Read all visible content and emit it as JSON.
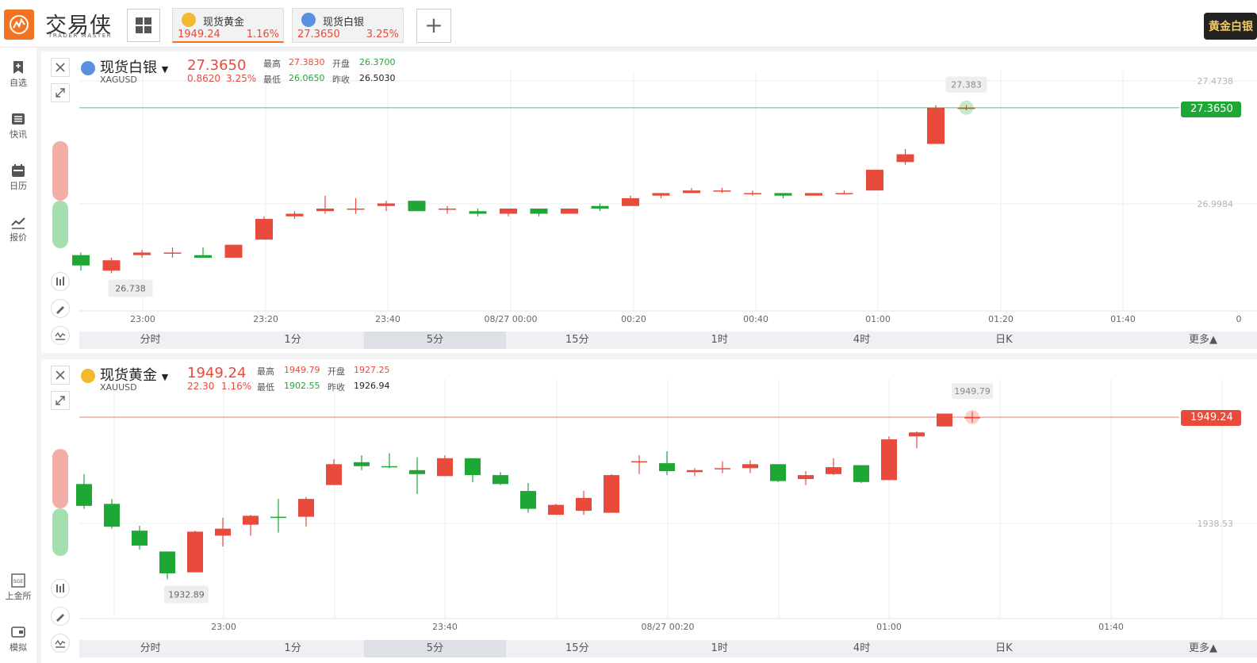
{
  "app": {
    "title": "交易侠",
    "subtitle": "TRADER MASTER",
    "promo": "黄金白银"
  },
  "tabs": [
    {
      "name": "现货黄金",
      "price": "1949.24",
      "change": "1.16%",
      "active": true
    },
    {
      "name": "现货白银",
      "price": "27.3650",
      "change": "3.25%",
      "active": false
    }
  ],
  "sidebar": {
    "top": [
      {
        "label": "自选",
        "icon": "bookmark-icon"
      },
      {
        "label": "快讯",
        "icon": "news-list-icon"
      },
      {
        "label": "日历",
        "icon": "calendar-icon"
      },
      {
        "label": "报价",
        "icon": "quote-trend-icon"
      }
    ],
    "bottom": [
      {
        "label": "上金所",
        "icon": "sge-icon"
      },
      {
        "label": "模拟",
        "icon": "wallet-icon"
      }
    ]
  },
  "colors": {
    "up": "#e84b3c",
    "down": "#1ea735",
    "accent": "#f47321"
  },
  "timeframes": [
    "分时",
    "1分",
    "5分",
    "15分",
    "1时",
    "4时",
    "日K",
    "更多▲"
  ],
  "selected_timeframe": "5分",
  "panels": [
    {
      "name": "现货白银",
      "code": "XAGUSD",
      "price": "27.3650",
      "change": "0.8620",
      "change_pct": "3.25%",
      "high_label": "最高",
      "high": "27.3830",
      "open_label": "开盘",
      "open": "26.3700",
      "low_label": "最低",
      "low": "26.0650",
      "prev_label": "昨收",
      "prev": "26.5030",
      "current_tag": "27.3650",
      "max_marker": "27.383",
      "min_marker": "26.738",
      "y_labels": [
        "27.4738",
        "26.9984"
      ],
      "x_labels": [
        "23:00",
        "23:20",
        "23:40",
        "08/27 00:00",
        "00:20",
        "00:40",
        "01:00",
        "01:20",
        "01:40",
        "0"
      ]
    },
    {
      "name": "现货黄金",
      "code": "XAUUSD",
      "price": "1949.24",
      "change": "22.30",
      "change_pct": "1.16%",
      "high_label": "最高",
      "high": "1949.79",
      "open_label": "开盘",
      "open": "1927.25",
      "low_label": "最低",
      "low": "1902.55",
      "prev_label": "昨收",
      "prev": "1926.94",
      "current_tag": "1949.24",
      "max_marker": "1949.79",
      "min_marker": "1932.89",
      "y_labels": [
        "1938.53"
      ],
      "x_labels": [
        "23:00",
        "23:40",
        "08/27 00:20",
        "01:00",
        "01:40"
      ]
    }
  ],
  "chart_data": [
    {
      "type": "candlestick",
      "title": "现货白银 XAGUSD 5分",
      "x_ticks": [
        "23:00",
        "23:20",
        "23:40",
        "08/27 00:00",
        "00:20",
        "00:40",
        "01:00",
        "01:20",
        "01:40"
      ],
      "y_ticks": [
        27.4738,
        26.9984
      ],
      "candles": [
        {
          "o": 26.8,
          "h": 26.81,
          "l": 26.74,
          "c": 26.76
        },
        {
          "o": 26.74,
          "h": 26.79,
          "l": 26.73,
          "c": 26.78
        },
        {
          "o": 26.8,
          "h": 26.82,
          "l": 26.79,
          "c": 26.81
        },
        {
          "o": 26.81,
          "h": 26.83,
          "l": 26.79,
          "c": 26.81
        },
        {
          "o": 26.8,
          "h": 26.83,
          "l": 26.79,
          "c": 26.79
        },
        {
          "o": 26.79,
          "h": 26.84,
          "l": 26.79,
          "c": 26.84
        },
        {
          "o": 26.86,
          "h": 26.95,
          "l": 26.86,
          "c": 26.94
        },
        {
          "o": 26.95,
          "h": 26.97,
          "l": 26.94,
          "c": 26.96
        },
        {
          "o": 26.97,
          "h": 27.03,
          "l": 26.96,
          "c": 26.98
        },
        {
          "o": 26.98,
          "h": 27.02,
          "l": 26.96,
          "c": 26.98
        },
        {
          "o": 26.99,
          "h": 27.01,
          "l": 26.97,
          "c": 27.0
        },
        {
          "o": 27.01,
          "h": 27.01,
          "l": 26.97,
          "c": 26.97
        },
        {
          "o": 26.98,
          "h": 26.99,
          "l": 26.96,
          "c": 26.98
        },
        {
          "o": 26.97,
          "h": 26.98,
          "l": 26.95,
          "c": 26.96
        },
        {
          "o": 26.96,
          "h": 26.98,
          "l": 26.95,
          "c": 26.98
        },
        {
          "o": 26.98,
          "h": 26.98,
          "l": 26.95,
          "c": 26.96
        },
        {
          "o": 26.96,
          "h": 26.98,
          "l": 26.96,
          "c": 26.98
        },
        {
          "o": 26.99,
          "h": 27.0,
          "l": 26.97,
          "c": 26.98
        },
        {
          "o": 26.99,
          "h": 27.03,
          "l": 26.99,
          "c": 27.02
        },
        {
          "o": 27.03,
          "h": 27.04,
          "l": 27.02,
          "c": 27.04
        },
        {
          "o": 27.04,
          "h": 27.06,
          "l": 27.04,
          "c": 27.05
        },
        {
          "o": 27.05,
          "h": 27.06,
          "l": 27.04,
          "c": 27.05
        },
        {
          "o": 27.04,
          "h": 27.05,
          "l": 27.03,
          "c": 27.04
        },
        {
          "o": 27.04,
          "h": 27.04,
          "l": 27.02,
          "c": 27.03
        },
        {
          "o": 27.03,
          "h": 27.04,
          "l": 27.03,
          "c": 27.04
        },
        {
          "o": 27.04,
          "h": 27.05,
          "l": 27.04,
          "c": 27.04
        },
        {
          "o": 27.05,
          "h": 27.13,
          "l": 27.05,
          "c": 27.13
        },
        {
          "o": 27.16,
          "h": 27.21,
          "l": 27.15,
          "c": 27.19
        },
        {
          "o": 27.23,
          "h": 27.38,
          "l": 27.23,
          "c": 27.37
        },
        {
          "o": 27.37,
          "h": 27.38,
          "l": 27.36,
          "c": 27.37
        }
      ]
    },
    {
      "type": "candlestick",
      "title": "现货黄金 XAUUSD 5分",
      "x_ticks": [
        "23:00",
        "23:40",
        "08/27 00:20",
        "01:00",
        "01:40"
      ],
      "y_ticks": [
        1938.53
      ],
      "candles": [
        {
          "o": 1942.5,
          "h": 1943.5,
          "l": 1940.0,
          "c": 1940.3
        },
        {
          "o": 1940.5,
          "h": 1941.0,
          "l": 1938.0,
          "c": 1938.2
        },
        {
          "o": 1937.8,
          "h": 1938.3,
          "l": 1935.9,
          "c": 1936.3
        },
        {
          "o": 1935.7,
          "h": 1935.7,
          "l": 1932.9,
          "c": 1933.5
        },
        {
          "o": 1933.6,
          "h": 1937.8,
          "l": 1933.6,
          "c": 1937.7
        },
        {
          "o": 1937.3,
          "h": 1939.1,
          "l": 1936.2,
          "c": 1938.0
        },
        {
          "o": 1938.4,
          "h": 1939.4,
          "l": 1937.3,
          "c": 1939.3
        },
        {
          "o": 1939.2,
          "h": 1941.0,
          "l": 1937.6,
          "c": 1939.1
        },
        {
          "o": 1939.2,
          "h": 1941.2,
          "l": 1938.2,
          "c": 1941.0
        },
        {
          "o": 1942.4,
          "h": 1945.0,
          "l": 1942.4,
          "c": 1944.5
        },
        {
          "o": 1944.7,
          "h": 1945.4,
          "l": 1943.9,
          "c": 1944.3
        },
        {
          "o": 1944.3,
          "h": 1945.6,
          "l": 1944.1,
          "c": 1944.2
        },
        {
          "o": 1943.9,
          "h": 1945.2,
          "l": 1941.5,
          "c": 1943.5
        },
        {
          "o": 1943.3,
          "h": 1945.4,
          "l": 1943.3,
          "c": 1945.1
        },
        {
          "o": 1945.1,
          "h": 1945.1,
          "l": 1942.7,
          "c": 1943.4
        },
        {
          "o": 1943.4,
          "h": 1943.7,
          "l": 1942.4,
          "c": 1942.5
        },
        {
          "o": 1941.8,
          "h": 1942.6,
          "l": 1939.6,
          "c": 1940.0
        },
        {
          "o": 1939.4,
          "h": 1940.5,
          "l": 1939.4,
          "c": 1940.4
        },
        {
          "o": 1939.8,
          "h": 1941.8,
          "l": 1939.4,
          "c": 1941.1
        },
        {
          "o": 1939.6,
          "h": 1943.5,
          "l": 1939.6,
          "c": 1943.4
        },
        {
          "o": 1944.7,
          "h": 1945.4,
          "l": 1943.5,
          "c": 1944.8
        },
        {
          "o": 1944.6,
          "h": 1945.8,
          "l": 1943.4,
          "c": 1943.8
        },
        {
          "o": 1943.7,
          "h": 1944.1,
          "l": 1943.3,
          "c": 1943.9
        },
        {
          "o": 1944.0,
          "h": 1944.8,
          "l": 1943.6,
          "c": 1944.1
        },
        {
          "o": 1944.1,
          "h": 1944.9,
          "l": 1943.6,
          "c": 1944.5
        },
        {
          "o": 1944.5,
          "h": 1944.5,
          "l": 1942.7,
          "c": 1942.8
        },
        {
          "o": 1943.0,
          "h": 1943.8,
          "l": 1942.4,
          "c": 1943.4
        },
        {
          "o": 1943.5,
          "h": 1945.1,
          "l": 1943.4,
          "c": 1944.2
        },
        {
          "o": 1944.4,
          "h": 1944.4,
          "l": 1942.6,
          "c": 1942.7
        },
        {
          "o": 1942.9,
          "h": 1947.3,
          "l": 1942.9,
          "c": 1947.0
        },
        {
          "o": 1947.3,
          "h": 1947.8,
          "l": 1946.1,
          "c": 1947.7
        },
        {
          "o": 1948.3,
          "h": 1949.6,
          "l": 1948.3,
          "c": 1949.6
        },
        {
          "o": 1949.2,
          "h": 1949.79,
          "l": 1948.7,
          "c": 1949.24
        }
      ]
    }
  ]
}
